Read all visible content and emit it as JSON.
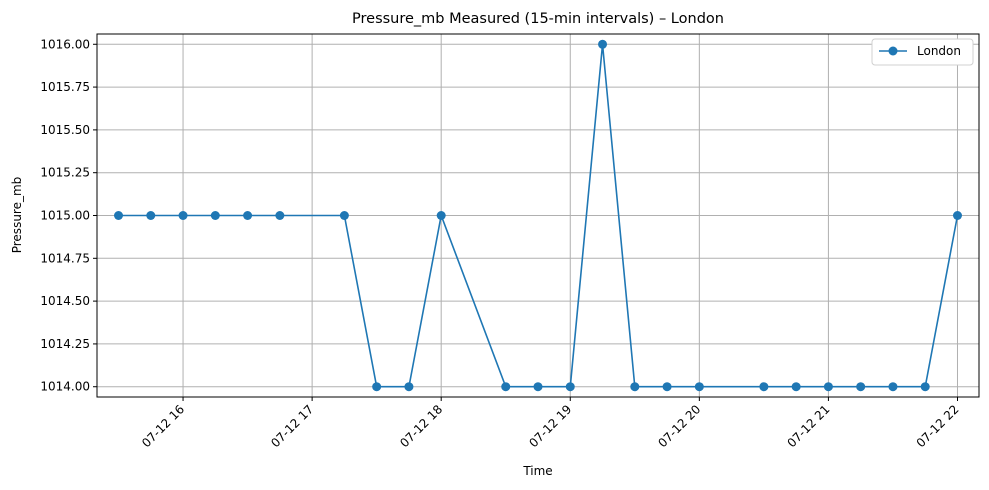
{
  "chart_data": {
    "type": "line",
    "title": "Pressure_mb Measured (15-min intervals) – London",
    "xlabel": "Time",
    "ylabel": "Pressure_mb",
    "grid": true,
    "legend_position": "top-right",
    "colors": {
      "series": "#1f77b4"
    },
    "x_ticks": [
      "07-12 16",
      "07-12 17",
      "07-12 18",
      "07-12 19",
      "07-12 20",
      "07-12 21",
      "07-12 22"
    ],
    "y_ticks": [
      "1014.00",
      "1014.25",
      "1014.50",
      "1014.75",
      "1015.00",
      "1015.25",
      "1015.50",
      "1015.75",
      "1016.00"
    ],
    "ylim": [
      1013.94,
      1016.06
    ],
    "xlim": [
      "07-12 15:20",
      "07-12 22:10"
    ],
    "series": [
      {
        "name": "London",
        "marker": "circle",
        "points": [
          {
            "x": "07-12 15:30",
            "y": 1015.0
          },
          {
            "x": "07-12 15:45",
            "y": 1015.0
          },
          {
            "x": "07-12 16:00",
            "y": 1015.0
          },
          {
            "x": "07-12 16:15",
            "y": 1015.0
          },
          {
            "x": "07-12 16:30",
            "y": 1015.0
          },
          {
            "x": "07-12 16:45",
            "y": 1015.0
          },
          {
            "x": "07-12 17:15",
            "y": 1015.0
          },
          {
            "x": "07-12 17:30",
            "y": 1014.0
          },
          {
            "x": "07-12 17:45",
            "y": 1014.0
          },
          {
            "x": "07-12 18:00",
            "y": 1015.0
          },
          {
            "x": "07-12 18:30",
            "y": 1014.0
          },
          {
            "x": "07-12 18:45",
            "y": 1014.0
          },
          {
            "x": "07-12 19:00",
            "y": 1014.0
          },
          {
            "x": "07-12 19:15",
            "y": 1016.0
          },
          {
            "x": "07-12 19:30",
            "y": 1014.0
          },
          {
            "x": "07-12 19:45",
            "y": 1014.0
          },
          {
            "x": "07-12 20:00",
            "y": 1014.0
          },
          {
            "x": "07-12 20:30",
            "y": 1014.0
          },
          {
            "x": "07-12 20:45",
            "y": 1014.0
          },
          {
            "x": "07-12 21:00",
            "y": 1014.0
          },
          {
            "x": "07-12 21:15",
            "y": 1014.0
          },
          {
            "x": "07-12 21:30",
            "y": 1014.0
          },
          {
            "x": "07-12 21:45",
            "y": 1014.0
          },
          {
            "x": "07-12 22:00",
            "y": 1015.0
          }
        ]
      }
    ]
  }
}
